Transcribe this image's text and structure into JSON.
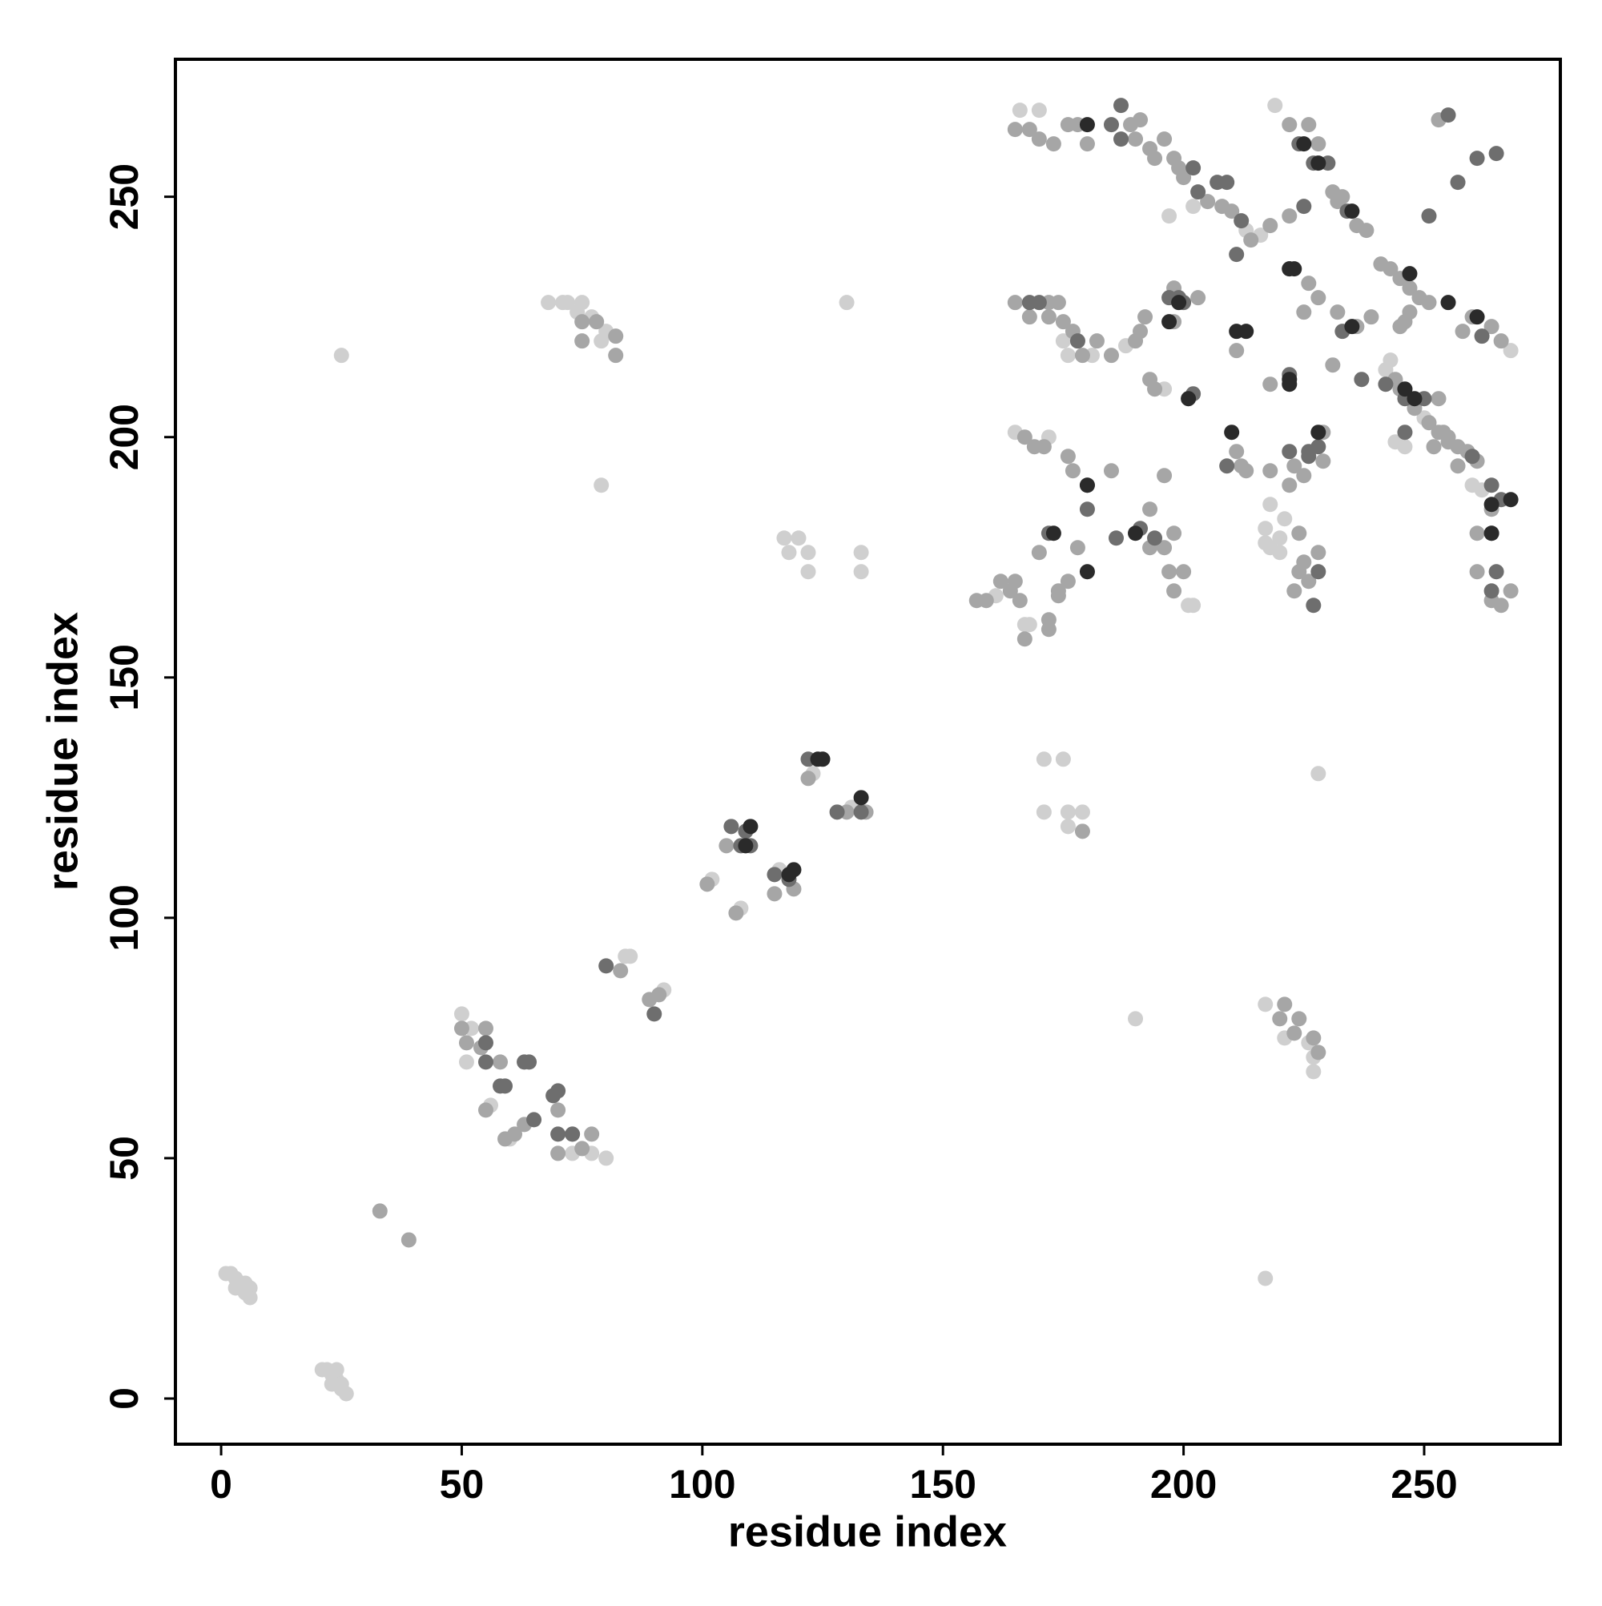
{
  "chart_data": {
    "type": "scatter",
    "xlabel": "residue index",
    "ylabel": "residue index",
    "xlim": [
      -9.5,
      278.3
    ],
    "ylim": [
      -9.5,
      278.6
    ],
    "xticks": [
      0,
      50,
      100,
      150,
      200,
      250
    ],
    "yticks": [
      0,
      50,
      100,
      150,
      200,
      250
    ],
    "series": [
      {
        "color": "#cfcfcf",
        "x": [
          1,
          2,
          3,
          4,
          5,
          6,
          6,
          3,
          5,
          21,
          22,
          23,
          24,
          25,
          25,
          26,
          23,
          24,
          25,
          79,
          68,
          71,
          72,
          75,
          74,
          77,
          79,
          80,
          130,
          117,
          120,
          122,
          118,
          122,
          133,
          133,
          50,
          52,
          51,
          56,
          60,
          73,
          77,
          80,
          84,
          85,
          92,
          102,
          108,
          116,
          123,
          131,
          171,
          175,
          171,
          176,
          176,
          179,
          190,
          228,
          217,
          217,
          221,
          227,
          227,
          226,
          166,
          170,
          219,
          202,
          197,
          216,
          213,
          181,
          178,
          175,
          176,
          188,
          196,
          165,
          172,
          218,
          217,
          217,
          218,
          220,
          221,
          220,
          201,
          202,
          167,
          168,
          161,
          242,
          243,
          244,
          246,
          250,
          268,
          260,
          262
        ],
        "values": [
          26,
          26,
          25,
          24,
          24,
          23,
          21,
          23,
          22,
          6,
          6,
          5,
          4,
          3,
          2,
          1,
          3,
          6,
          217,
          190,
          228,
          228,
          228,
          228,
          226,
          225,
          220,
          222,
          228,
          179,
          179,
          176,
          176,
          172,
          176,
          172,
          80,
          77,
          70,
          61,
          54,
          51,
          51,
          50,
          92,
          92,
          85,
          108,
          102,
          110,
          130,
          123,
          133,
          133,
          122,
          122,
          119,
          122,
          79,
          130,
          25,
          82,
          75,
          71,
          68,
          74,
          268,
          268,
          269,
          248,
          246,
          242,
          243,
          217,
          220,
          220,
          217,
          219,
          210,
          201,
          200,
          186,
          181,
          178,
          177,
          179,
          183,
          176,
          165,
          165,
          161,
          161,
          167,
          214,
          216,
          199,
          198,
          204,
          218,
          190,
          189
        ]
      },
      {
        "color": "#a6a6a6",
        "x": [
          33,
          39,
          75,
          78,
          75,
          82,
          82,
          50,
          51,
          55,
          54,
          58,
          55,
          59,
          61,
          63,
          70,
          70,
          73,
          75,
          77,
          83,
          89,
          91,
          101,
          105,
          107,
          115,
          119,
          122,
          130,
          134,
          179,
          220,
          221,
          223,
          227,
          228,
          224,
          165,
          168,
          170,
          173,
          176,
          178,
          180,
          189,
          190,
          191,
          193,
          194,
          196,
          198,
          199,
          200,
          205,
          208,
          210,
          214,
          222,
          226,
          228,
          231,
          232,
          236,
          238,
          233,
          222,
          218,
          253,
          165,
          172,
          174,
          168,
          172,
          175,
          177,
          179,
          182,
          185,
          190,
          191,
          192,
          193,
          194,
          198,
          203,
          198,
          211,
          218,
          226,
          228,
          232,
          231,
          225,
          244,
          245,
          248,
          251,
          253,
          255,
          257,
          259,
          261,
          241,
          243,
          245,
          247,
          249,
          251,
          258,
          260,
          264,
          266,
          245,
          246,
          247,
          253,
          255,
          257,
          264,
          261,
          261,
          264,
          266,
          268,
          252,
          254,
          236,
          239,
          167,
          169,
          171,
          176,
          177,
          178,
          176,
          174,
          170,
          185,
          193,
          193,
          196,
          197,
          198,
          200,
          198,
          196,
          211,
          212,
          213,
          218,
          222,
          223,
          224,
          225,
          224,
          226,
          228,
          229,
          229,
          223,
          225,
          157,
          159,
          162,
          165,
          167,
          172,
          172,
          174,
          166,
          164
        ],
        "values": [
          39,
          33,
          224,
          224,
          220,
          221,
          217,
          77,
          74,
          77,
          73,
          70,
          60,
          54,
          55,
          57,
          60,
          51,
          55,
          52,
          55,
          89,
          83,
          84,
          107,
          115,
          101,
          105,
          106,
          129,
          122,
          122,
          118,
          79,
          82,
          76,
          75,
          72,
          79,
          264,
          264,
          262,
          261,
          265,
          265,
          261,
          265,
          262,
          266,
          260,
          258,
          262,
          258,
          256,
          254,
          249,
          248,
          247,
          241,
          265,
          265,
          261,
          251,
          249,
          244,
          243,
          250,
          246,
          244,
          266,
          228,
          228,
          228,
          225,
          225,
          224,
          222,
          217,
          220,
          217,
          220,
          222,
          225,
          212,
          210,
          231,
          229,
          224,
          218,
          211,
          232,
          229,
          226,
          215,
          226,
          212,
          210,
          206,
          203,
          201,
          200,
          198,
          197,
          195,
          236,
          235,
          233,
          231,
          229,
          228,
          222,
          225,
          223,
          220,
          223,
          224,
          226,
          208,
          199,
          194,
          185,
          180,
          172,
          166,
          165,
          168,
          198,
          201,
          223,
          225,
          200,
          198,
          198,
          196,
          193,
          177,
          170,
          168,
          176,
          193,
          185,
          177,
          177,
          172,
          168,
          172,
          180,
          192,
          197,
          194,
          193,
          193,
          190,
          194,
          180,
          174,
          172,
          170,
          176,
          201,
          195,
          168,
          192,
          166,
          166,
          170,
          170,
          158,
          162,
          160,
          167,
          166,
          168
        ]
      },
      {
        "color": "#6e6e6e",
        "x": [
          55,
          55,
          64,
          63,
          58,
          59,
          65,
          69,
          70,
          70,
          73,
          80,
          90,
          106,
          108,
          109,
          110,
          115,
          118,
          122,
          128,
          133,
          180,
          185,
          187,
          187,
          202,
          203,
          207,
          209,
          211,
          212,
          224,
          227,
          230,
          234,
          225,
          255,
          257,
          261,
          265,
          251,
          168,
          170,
          178,
          197,
          199,
          200,
          202,
          222,
          222,
          233,
          237,
          246,
          250,
          260,
          262,
          264,
          266,
          264,
          264,
          265,
          246,
          242,
          172,
          180,
          186,
          191,
          194,
          209,
          226,
          228,
          222,
          227,
          228,
          226
        ],
        "values": [
          74,
          70,
          70,
          70,
          65,
          65,
          58,
          63,
          64,
          55,
          55,
          90,
          80,
          119,
          115,
          118,
          115,
          109,
          108,
          133,
          122,
          122,
          185,
          265,
          269,
          262,
          256,
          251,
          253,
          253,
          238,
          245,
          261,
          257,
          257,
          247,
          248,
          267,
          253,
          258,
          259,
          246,
          228,
          228,
          220,
          229,
          229,
          228,
          209,
          213,
          235,
          222,
          212,
          208,
          208,
          196,
          221,
          190,
          187,
          180,
          168,
          172,
          201,
          211,
          180,
          190,
          179,
          181,
          179,
          194,
          197,
          198,
          197,
          165,
          172,
          196
        ]
      },
      {
        "color": "#2a2a2a",
        "x": [
          110,
          109,
          119,
          118,
          124,
          125,
          133,
          180,
          225,
          228,
          235,
          213,
          211,
          222,
          222,
          223,
          235,
          246,
          247,
          248,
          255,
          261,
          201,
          199,
          197,
          210,
          180,
          190,
          173,
          180,
          222,
          228,
          264,
          268,
          264
        ],
        "values": [
          119,
          115,
          110,
          109,
          133,
          133,
          125,
          265,
          261,
          257,
          247,
          222,
          222,
          212,
          211,
          235,
          223,
          210,
          234,
          208,
          228,
          225,
          208,
          228,
          224,
          201,
          172,
          180,
          180,
          190,
          235,
          201,
          180,
          187,
          186
        ]
      }
    ]
  }
}
